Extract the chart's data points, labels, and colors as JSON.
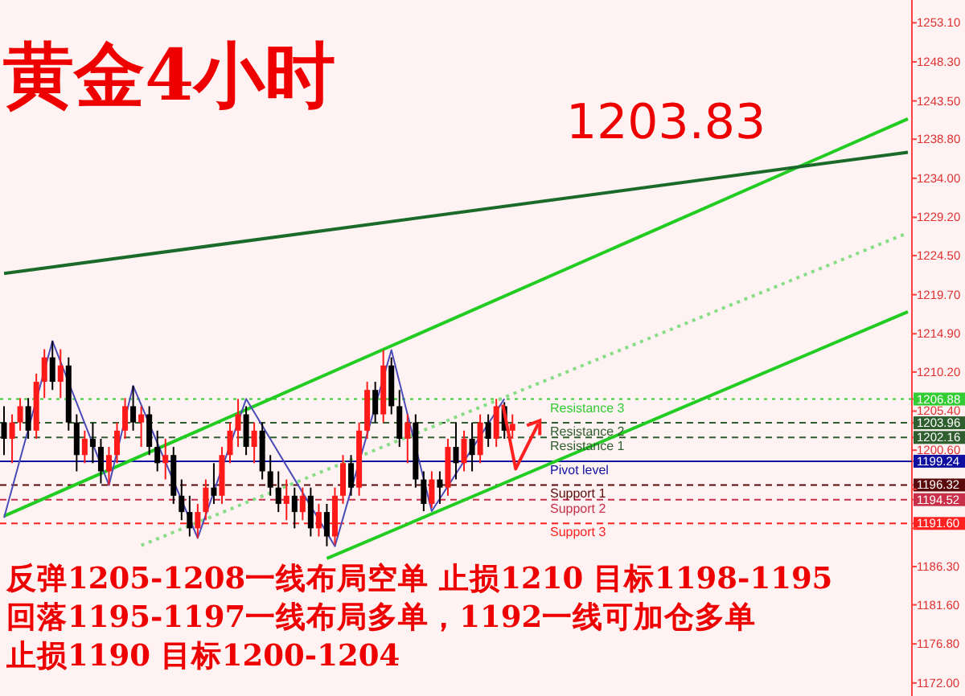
{
  "chart_data": {
    "type": "candlestick",
    "title": "黄金4小时",
    "categories": [
      null,
      null,
      null,
      null,
      null,
      null,
      null,
      null,
      null,
      null,
      null,
      null,
      null,
      null,
      null,
      null,
      null,
      null,
      null,
      null,
      null,
      null,
      null,
      null,
      null,
      null,
      null,
      null,
      null,
      null,
      null,
      null,
      null,
      null,
      null,
      null,
      null,
      null,
      null,
      null,
      null,
      null,
      null,
      null,
      null,
      null,
      null,
      null,
      null,
      null,
      null,
      null,
      null,
      null,
      null,
      null,
      null,
      null,
      null,
      null,
      null,
      null,
      null,
      null,
      null,
      null,
      null,
      null,
      null,
      null,
      null,
      null,
      null,
      null,
      null,
      null,
      null,
      null,
      null,
      null,
      null,
      null,
      null,
      null,
      null,
      null,
      null,
      null,
      null,
      null,
      null,
      null,
      null,
      null,
      null,
      null,
      null,
      null,
      null,
      null,
      null,
      null,
      null,
      null,
      null,
      null,
      null,
      null,
      null,
      null,
      null,
      null,
      null
    ],
    "ohlc": [
      [
        1204,
        1206,
        1200,
        1202
      ],
      [
        1202,
        1205,
        1199,
        1204
      ],
      [
        1204,
        1207,
        1203,
        1206
      ],
      [
        1206,
        1207,
        1202,
        1203
      ],
      [
        1203,
        1210,
        1202,
        1209
      ],
      [
        1209,
        1213,
        1207,
        1212
      ],
      [
        1212,
        1214,
        1208,
        1209
      ],
      [
        1209,
        1213,
        1207,
        1211
      ],
      [
        1211,
        1212,
        1203,
        1204
      ],
      [
        1204,
        1205,
        1198,
        1200
      ],
      [
        1200,
        1203,
        1199,
        1202
      ],
      [
        1202,
        1204,
        1199,
        1201
      ],
      [
        1201,
        1202,
        1196.5,
        1198
      ],
      [
        1198,
        1201,
        1196.3,
        1200
      ],
      [
        1200,
        1204,
        1199,
        1203
      ],
      [
        1203,
        1207,
        1202,
        1206
      ],
      [
        1206,
        1208.5,
        1203,
        1204
      ],
      [
        1204,
        1206,
        1201,
        1205
      ],
      [
        1205,
        1206,
        1200,
        1201
      ],
      [
        1201,
        1203,
        1198,
        1199
      ],
      [
        1199,
        1202,
        1197,
        1200
      ],
      [
        1200,
        1201,
        1194,
        1195
      ],
      [
        1195,
        1197,
        1192,
        1193
      ],
      [
        1193,
        1195,
        1190,
        1191
      ],
      [
        1191,
        1194,
        1189.8,
        1193
      ],
      [
        1193,
        1197,
        1192,
        1196
      ],
      [
        1196,
        1199,
        1194,
        1195
      ],
      [
        1195,
        1201,
        1194,
        1200
      ],
      [
        1200,
        1204,
        1199,
        1203
      ],
      [
        1203,
        1206.9,
        1201,
        1205
      ],
      [
        1205,
        1206,
        1200,
        1201
      ],
      [
        1201,
        1204,
        1199,
        1203
      ],
      [
        1203,
        1204,
        1197,
        1198
      ],
      [
        1198,
        1200,
        1195,
        1196
      ],
      [
        1196,
        1198,
        1193,
        1194
      ],
      [
        1194,
        1197,
        1192,
        1195
      ],
      [
        1195,
        1196,
        1191,
        1193
      ],
      [
        1193,
        1196,
        1192,
        1195
      ],
      [
        1195,
        1196,
        1190,
        1191
      ],
      [
        1191,
        1194,
        1190,
        1193
      ],
      [
        1193,
        1194,
        1188.8,
        1190
      ],
      [
        1190,
        1196,
        1189,
        1195
      ],
      [
        1195,
        1200,
        1194,
        1199
      ],
      [
        1199,
        1200,
        1195,
        1196
      ],
      [
        1196,
        1204,
        1195,
        1203
      ],
      [
        1203,
        1209,
        1202,
        1208
      ],
      [
        1208,
        1209,
        1204,
        1205
      ],
      [
        1205,
        1212.9,
        1204,
        1211
      ],
      [
        1211,
        1212,
        1205,
        1206
      ],
      [
        1206,
        1208,
        1201,
        1202
      ],
      [
        1202,
        1205,
        1199,
        1204
      ],
      [
        1204,
        1205,
        1196,
        1197
      ],
      [
        1197,
        1198,
        1193.1,
        1194
      ],
      [
        1194,
        1198,
        1193.5,
        1197
      ],
      [
        1197,
        1198,
        1194,
        1196
      ],
      [
        1196,
        1202,
        1195,
        1201
      ],
      [
        1201,
        1204,
        1197,
        1199
      ],
      [
        1199,
        1203,
        1198,
        1202
      ],
      [
        1202,
        1204,
        1198,
        1200
      ],
      [
        1200,
        1205,
        1199,
        1204
      ],
      [
        1204,
        1205,
        1201,
        1202
      ],
      [
        1202,
        1206.9,
        1201,
        1206
      ],
      [
        1206,
        1206.5,
        1202,
        1203
      ],
      [
        1203,
        1205,
        1202,
        1203.83
      ],
      null,
      null,
      null,
      null,
      null,
      null,
      null,
      null,
      null,
      null,
      null,
      null,
      null,
      null,
      null,
      null,
      null,
      null,
      null,
      null,
      null,
      null,
      null,
      null,
      null,
      null,
      null,
      null,
      null,
      null,
      null,
      null,
      null,
      null,
      null,
      null,
      null,
      null,
      null,
      null,
      null,
      null,
      null,
      null,
      null,
      null,
      null,
      null,
      null
    ],
    "series": [
      {
        "type": "line",
        "color": "#22cc22",
        "line_style": "solid",
        "values": [
          1192.5,
          null,
          null,
          null,
          null,
          null,
          null,
          null,
          null,
          null,
          null,
          null,
          null,
          null,
          null,
          null,
          null,
          null,
          null,
          null,
          null,
          null,
          null,
          null,
          null,
          null,
          null,
          null,
          null,
          null,
          null,
          null,
          null,
          null,
          null,
          null,
          null,
          null,
          null,
          null,
          null,
          null,
          null,
          null,
          null,
          null,
          null,
          null,
          null,
          null,
          null,
          null,
          null,
          null,
          null,
          null,
          null,
          null,
          null,
          null,
          null,
          null,
          null,
          null,
          null,
          null,
          null,
          null,
          null,
          null,
          null,
          null,
          null,
          null,
          null,
          null,
          null,
          null,
          null,
          null,
          null,
          null,
          null,
          null,
          null,
          null,
          null,
          null,
          null,
          null,
          null,
          null,
          null,
          null,
          null,
          null,
          null,
          null,
          null,
          null,
          null,
          null,
          null,
          null,
          null,
          null,
          null,
          null,
          null,
          null,
          null,
          null,
          1241.3
        ]
      },
      {
        "type": "line",
        "color": "#22cc22",
        "line_style": "solid",
        "values": [
          null,
          null,
          null,
          null,
          null,
          null,
          null,
          null,
          null,
          null,
          null,
          null,
          null,
          null,
          null,
          null,
          null,
          null,
          null,
          null,
          null,
          null,
          null,
          null,
          null,
          null,
          null,
          null,
          null,
          null,
          null,
          null,
          null,
          null,
          null,
          null,
          null,
          null,
          null,
          null,
          1187.3,
          null,
          null,
          null,
          null,
          null,
          null,
          null,
          null,
          null,
          null,
          null,
          null,
          null,
          null,
          null,
          null,
          null,
          null,
          null,
          null,
          null,
          null,
          null,
          null,
          null,
          null,
          null,
          null,
          null,
          null,
          null,
          null,
          null,
          null,
          null,
          null,
          null,
          null,
          null,
          null,
          null,
          null,
          null,
          null,
          null,
          null,
          null,
          null,
          null,
          null,
          null,
          null,
          null,
          null,
          null,
          null,
          null,
          null,
          null,
          null,
          null,
          null,
          null,
          null,
          null,
          null,
          null,
          null,
          null,
          null,
          null,
          1217.6
        ]
      },
      {
        "type": "line",
        "color": "#88dd88",
        "line_style": "dotted",
        "values": [
          null,
          null,
          null,
          null,
          null,
          null,
          null,
          null,
          null,
          null,
          null,
          null,
          null,
          null,
          null,
          null,
          null,
          1188.9,
          null,
          null,
          null,
          null,
          null,
          null,
          null,
          null,
          null,
          null,
          null,
          null,
          null,
          null,
          null,
          null,
          null,
          null,
          null,
          null,
          null,
          null,
          null,
          null,
          null,
          null,
          null,
          null,
          null,
          null,
          null,
          null,
          null,
          null,
          null,
          null,
          null,
          null,
          null,
          null,
          null,
          null,
          null,
          null,
          null,
          null,
          null,
          null,
          null,
          null,
          null,
          null,
          null,
          null,
          null,
          null,
          null,
          null,
          null,
          null,
          null,
          null,
          null,
          null,
          null,
          null,
          null,
          null,
          null,
          null,
          null,
          null,
          null,
          null,
          null,
          null,
          null,
          null,
          null,
          null,
          null,
          null,
          null,
          null,
          null,
          null,
          null,
          null,
          null,
          null,
          null,
          null,
          null,
          null,
          1227.3
        ]
      },
      {
        "type": "line",
        "color": "#1a6b2a",
        "line_style": "solid",
        "values": [
          1222.3,
          null,
          null,
          null,
          null,
          null,
          null,
          null,
          null,
          null,
          null,
          null,
          null,
          null,
          null,
          null,
          null,
          null,
          null,
          null,
          null,
          null,
          null,
          null,
          null,
          null,
          null,
          null,
          null,
          null,
          null,
          null,
          null,
          null,
          null,
          null,
          null,
          null,
          null,
          null,
          null,
          null,
          null,
          null,
          null,
          null,
          null,
          null,
          null,
          null,
          null,
          null,
          null,
          null,
          null,
          null,
          null,
          null,
          null,
          null,
          null,
          null,
          null,
          null,
          null,
          null,
          null,
          null,
          null,
          null,
          null,
          null,
          null,
          null,
          null,
          null,
          null,
          null,
          null,
          null,
          null,
          null,
          null,
          null,
          null,
          null,
          null,
          null,
          null,
          null,
          null,
          null,
          null,
          null,
          null,
          null,
          null,
          null,
          null,
          null,
          null,
          null,
          null,
          null,
          null,
          null,
          null,
          null,
          null,
          null,
          null,
          null,
          1237.2
        ]
      },
      {
        "type": "line",
        "color": "#4a4ab8",
        "line_style": "solid",
        "values": [
          1192.3,
          null,
          null,
          null,
          null,
          null,
          1214,
          null,
          null,
          null,
          null,
          null,
          null,
          1196.3,
          null,
          null,
          1208.5,
          null,
          null,
          null,
          null,
          null,
          null,
          null,
          1189.8,
          null,
          null,
          null,
          null,
          null,
          1206.9,
          null,
          null,
          null,
          null,
          null,
          null,
          null,
          null,
          null,
          null,
          1188.8,
          null,
          null,
          null,
          null,
          null,
          null,
          1212.9,
          null,
          null,
          null,
          null,
          1193.1,
          null,
          null,
          null,
          null,
          null,
          null,
          null,
          null,
          1206.9,
          null,
          null,
          null,
          null,
          null,
          null,
          null,
          null,
          null,
          null,
          null,
          null,
          null,
          null,
          null,
          null,
          null,
          null,
          null,
          null,
          null,
          null,
          null,
          null,
          null,
          null,
          null,
          null,
          null,
          null,
          null,
          null,
          null,
          null,
          null,
          null,
          null,
          null,
          null,
          null,
          null,
          null,
          null,
          null,
          null,
          null,
          null,
          null,
          null,
          null
        ]
      }
    ],
    "ylim": [
      1170.4,
      1255.9
    ],
    "yticks": [
      {
        "value": 1253.1,
        "label": "1253.10"
      },
      {
        "value": 1248.3,
        "label": "1248.30"
      },
      {
        "value": 1243.5,
        "label": "1243.50"
      },
      {
        "value": 1238.8,
        "label": "1238.80"
      },
      {
        "value": 1234,
        "label": "1234.00"
      },
      {
        "value": 1229.2,
        "label": "1229.20"
      },
      {
        "value": 1224.5,
        "label": "1224.50"
      },
      {
        "value": 1219.7,
        "label": "1219.70"
      },
      {
        "value": 1214.9,
        "label": "1214.90"
      },
      {
        "value": 1210.2,
        "label": "1210.20"
      },
      {
        "value": 1206.88,
        "label": "1206.88"
      },
      {
        "value": 1205.4,
        "label": "1205.40"
      },
      {
        "value": 1203.96,
        "label": "1203.96"
      },
      {
        "value": 1202.16,
        "label": "1202.16"
      },
      {
        "value": 1200.6,
        "label": "1200.60"
      },
      {
        "value": 1199.24,
        "label": "1199.24"
      },
      {
        "value": 1196.32,
        "label": "1196.32"
      },
      {
        "value": 1195.8,
        "label": null
      },
      {
        "value": 1194.52,
        "label": "1194.52"
      },
      {
        "value": 1191.6,
        "label": "1191.60"
      },
      {
        "value": 1191,
        "label": null
      },
      {
        "value": 1186.3,
        "label": "1186.30"
      },
      {
        "value": 1181.6,
        "label": "1181.60"
      },
      {
        "value": 1176.8,
        "label": "1176.80"
      },
      {
        "value": 1172,
        "label": "1172.00"
      }
    ],
    "ref_lines": [
      {
        "axis": "y",
        "value": 1206.88,
        "label": "Resistance 3",
        "color": "#33cc33",
        "line_style": "dotted"
      },
      {
        "axis": "y",
        "value": 1203.96,
        "label": "Resistance 2",
        "color": "#2f5f2f",
        "line_style": "dashed"
      },
      {
        "axis": "y",
        "value": 1202.16,
        "label": "Resistance 1",
        "color": "#2f5f2f",
        "line_style": "dashed"
      },
      {
        "axis": "y",
        "value": 1199.24,
        "label": "Pivot level",
        "color": "#1010a0",
        "line_style": "solid"
      },
      {
        "axis": "y",
        "value": 1196.32,
        "label": "Support 1",
        "color": "#5a0a0a",
        "line_style": "dashed"
      },
      {
        "axis": "y",
        "value": 1194.52,
        "label": "Support 2",
        "color": "#c8304a",
        "line_style": "dashed"
      },
      {
        "axis": "y",
        "value": 1191.6,
        "label": "Support 3",
        "color": "#ff2020",
        "line_style": "dashed"
      }
    ],
    "annotations": [
      "1203.83",
      "反弹1205-1208一线布局空单  止损1210 目标1198-1195",
      "回落1195-1197一线布局多单，1192一线可加仓多单",
      "止损1190     目标1200-1204"
    ],
    "grid": false
  }
}
